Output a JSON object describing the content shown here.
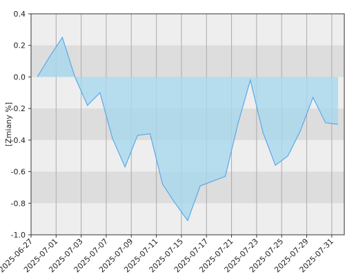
{
  "chart_data": {
    "type": "area",
    "y_label": "[Zmiany %]",
    "categories": [
      "2025-06-27",
      null,
      "2025-07-01",
      null,
      "2025-07-03",
      null,
      "2025-07-07",
      null,
      "2025-07-09",
      null,
      "2025-07-11",
      null,
      "2025-07-15",
      null,
      "2025-07-17",
      null,
      "2025-07-21",
      null,
      "2025-07-23",
      null,
      "2025-07-25",
      null,
      "2025-07-29",
      null,
      "2025-07-31"
    ],
    "values": [
      0.0,
      0.13,
      0.25,
      0.0,
      -0.18,
      -0.1,
      -0.39,
      -0.57,
      -0.37,
      -0.36,
      -0.68,
      -0.8,
      -0.91,
      -0.69,
      -0.66,
      -0.63,
      -0.3,
      -0.02,
      -0.35,
      -0.56,
      -0.5,
      -0.34,
      -0.13,
      -0.29,
      -0.3
    ],
    "color": "#5aa8e8",
    "fill": "#a8d8ee",
    "ylim": [
      -1.0,
      0.4
    ],
    "yticks": [
      {
        "value": -1.0,
        "label": "-1.0"
      },
      -0.8,
      -0.6,
      -0.4,
      -0.2,
      {
        "value": 0,
        "label": "0.0"
      },
      0.2,
      0.4
    ],
    "grid": true
  }
}
